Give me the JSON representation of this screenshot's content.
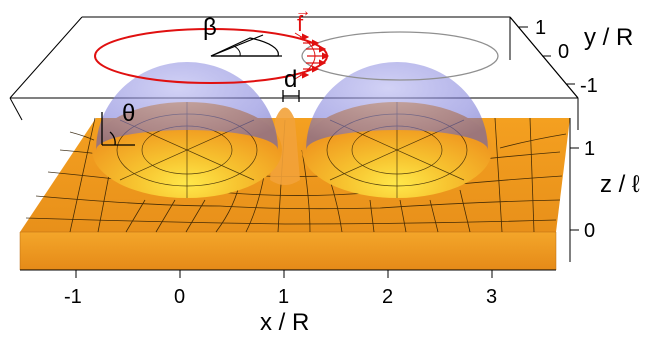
{
  "figure": {
    "symbols": {
      "beta": "β",
      "theta": "θ",
      "d": "d",
      "f": "f",
      "f_arrow": "→"
    },
    "x_axis": {
      "title": "x / R",
      "ticks": [
        "-1",
        "0",
        "1",
        "2",
        "3"
      ]
    },
    "y_axis": {
      "title": "y / R",
      "ticks": [
        "1",
        "0",
        "-1"
      ]
    },
    "z_axis": {
      "title": "z / ℓ",
      "ticks": [
        "1",
        "0"
      ]
    },
    "colors": {
      "substrate": "#f2a020",
      "substrate_dark": "#d87a10",
      "drop": "#8080e0",
      "contact_line_red": "#e01010",
      "contact_line_gray": "#909090"
    }
  }
}
